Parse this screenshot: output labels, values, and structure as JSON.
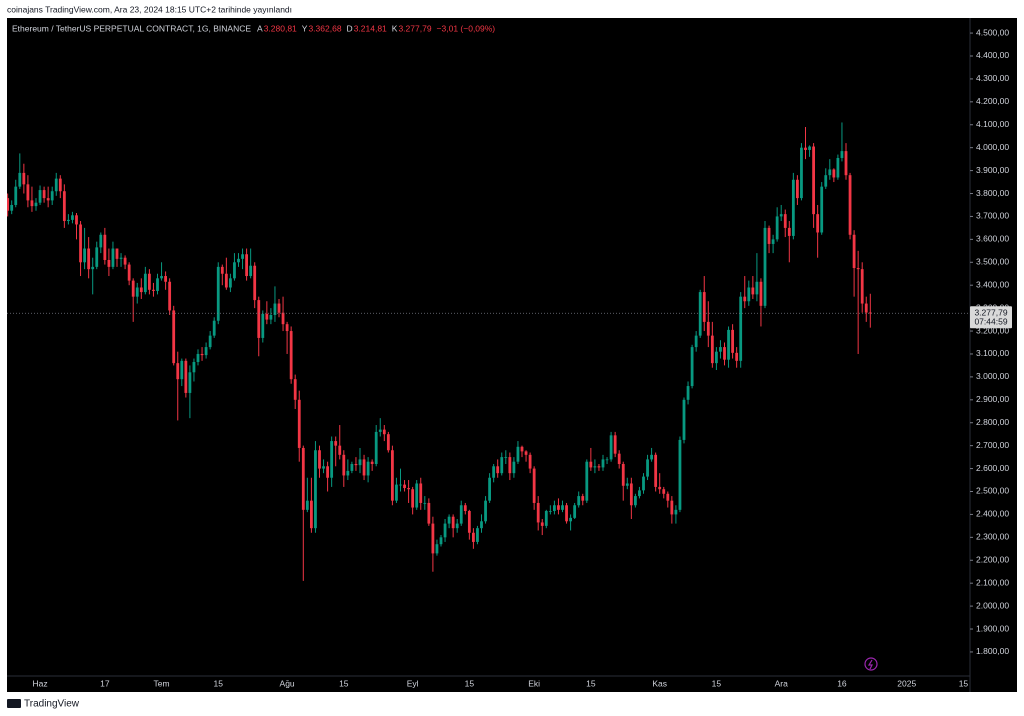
{
  "header": "coinajans TradingView.com, Ara 23, 2024 18:15 UTC+2 tarihinde yayınlandı",
  "footer": {
    "brand": "TradingView"
  },
  "chart_data": {
    "type": "candlestick",
    "title": "Ethereum / TetherUS PERPETUAL CONTRACT, 1G, BINANCE",
    "ohlc_legend": [
      {
        "key": "A",
        "text": "3.280,81"
      },
      {
        "key": "Y",
        "text": "3.362,68"
      },
      {
        "key": "D",
        "text": "3.214,81"
      },
      {
        "key": "K",
        "text": "3.277,79"
      }
    ],
    "change": "−3,01 (−0,09%)",
    "last_price_label": "3.277,79",
    "countdown": "07:44:59",
    "up_color": "#089981",
    "down_color": "#f23645",
    "categories": [
      null,
      null,
      null,
      null,
      null,
      null,
      null,
      null,
      null,
      "Haz",
      null,
      null,
      null,
      null,
      null,
      null,
      null,
      null,
      null,
      null,
      null,
      null,
      null,
      null,
      null,
      "17",
      null,
      null,
      null,
      null,
      null,
      null,
      null,
      null,
      null,
      null,
      null,
      null,
      null,
      "Tem",
      null,
      null,
      null,
      null,
      null,
      null,
      null,
      null,
      null,
      null,
      null,
      null,
      null,
      "15",
      null,
      null,
      null,
      null,
      null,
      null,
      null,
      null,
      null,
      null,
      null,
      null,
      null,
      null,
      null,
      null,
      "Ağu",
      null,
      null,
      null,
      null,
      null,
      null,
      null,
      null,
      null,
      null,
      null,
      null,
      null,
      "15",
      null,
      null,
      null,
      null,
      null,
      null,
      null,
      null,
      null,
      null,
      null,
      null,
      null,
      null,
      null,
      null,
      "Eyl",
      null,
      null,
      null,
      null,
      null,
      null,
      null,
      null,
      null,
      null,
      null,
      null,
      null,
      "15",
      null,
      null,
      null,
      null,
      null,
      null,
      null,
      null,
      null,
      null,
      null,
      null,
      null,
      null,
      null,
      "Eki",
      null,
      null,
      null,
      null,
      null,
      null,
      null,
      null,
      null,
      null,
      null,
      null,
      null,
      "15",
      null,
      null,
      null,
      null,
      null,
      null,
      null,
      null,
      null,
      null,
      null,
      null,
      null,
      null,
      null,
      null,
      "Kas",
      null,
      null,
      null,
      null,
      null,
      null,
      null,
      null,
      null,
      null,
      null,
      null,
      null,
      "15",
      null,
      null,
      null,
      null,
      null,
      null,
      null,
      null,
      null,
      null,
      null,
      null,
      null,
      null,
      null,
      "Ara",
      null,
      null,
      null,
      null,
      null,
      null,
      null,
      null,
      null,
      null,
      null,
      null,
      null,
      null,
      "16",
      null,
      null,
      null,
      null,
      null,
      null,
      null,
      null,
      null,
      null,
      null,
      null,
      null,
      null,
      null,
      "2025",
      null,
      null,
      null,
      null,
      null,
      null,
      null,
      null,
      null,
      null,
      null,
      null,
      null,
      "15"
    ],
    "open": [
      3760,
      3780,
      3725,
      3750,
      3830,
      3890,
      3840,
      3770,
      3745,
      3760,
      3815,
      3780,
      3770,
      3810,
      3865,
      3810,
      3680,
      3685,
      3705,
      3665,
      3500,
      3560,
      3470,
      3480,
      3565,
      3620,
      3510,
      3480,
      3560,
      3515,
      3520,
      3490,
      3420,
      3350,
      3390,
      3370,
      3450,
      3380,
      3375,
      3430,
      3440,
      3415,
      3290,
      3060,
      2990,
      3070,
      2930,
      3020,
      3065,
      3100,
      3095,
      3130,
      3180,
      3245,
      3480,
      3450,
      3390,
      3430,
      3500,
      3515,
      3535,
      3440,
      3485,
      3335,
      3170,
      3275,
      3250,
      3270,
      3320,
      3280,
      3230,
      3200,
      2990,
      2900,
      2690,
      2420,
      2460,
      2340,
      2680,
      2600,
      2610,
      2560,
      2720,
      2700,
      2660,
      2570,
      2590,
      2620,
      2615,
      2640,
      2570,
      2630,
      2620,
      2760,
      2770,
      2750,
      2680,
      2460,
      2530,
      2530,
      2515,
      2510,
      2430,
      2535,
      2450,
      2450,
      2360,
      2230,
      2270,
      2300,
      2360,
      2390,
      2340,
      2360,
      2440,
      2415,
      2320,
      2280,
      2340,
      2370,
      2460,
      2560,
      2610,
      2580,
      2650,
      2650,
      2580,
      2630,
      2695,
      2675,
      2660,
      2600,
      2450,
      2365,
      2350,
      2415,
      2415,
      2440,
      2420,
      2440,
      2370,
      2385,
      2440,
      2480,
      2460,
      2630,
      2605,
      2610,
      2605,
      2640,
      2640,
      2745,
      2665,
      2620,
      2525,
      2535,
      2440,
      2480,
      2505,
      2565,
      2640,
      2660,
      2520,
      2510,
      2490,
      2460,
      2400,
      2420,
      2725,
      2900,
      2960,
      3130,
      3180,
      3370,
      3240,
      3180,
      3060,
      3110,
      3130,
      3075,
      3205,
      3105,
      3070,
      3350,
      3330,
      3390,
      3360,
      3415,
      3310,
      3650,
      3580,
      3600,
      3700,
      3710,
      3650,
      3615,
      3860,
      3780,
      4000,
      3990,
      4005,
      3710,
      3630,
      3830,
      3880,
      3905,
      3870,
      3955,
      3985,
      3880,
      3620,
      3475,
      3470,
      3320,
      3280.81,
      null,
      null,
      null,
      null,
      null,
      null,
      null,
      null,
      null,
      null,
      null,
      null,
      null,
      null,
      null,
      null,
      null,
      null,
      null,
      null,
      null,
      null,
      null
    ],
    "high": [
      3830,
      3800,
      3770,
      3860,
      3975,
      3930,
      3880,
      3830,
      3780,
      3835,
      3830,
      3830,
      3830,
      3890,
      3880,
      3840,
      3710,
      3720,
      3715,
      3680,
      3650,
      3610,
      3520,
      3590,
      3630,
      3650,
      3560,
      3590,
      3560,
      3540,
      3530,
      3500,
      3430,
      3410,
      3430,
      3480,
      3470,
      3410,
      3450,
      3500,
      3460,
      3430,
      3310,
      3110,
      3080,
      3080,
      3050,
      3080,
      3120,
      3130,
      3150,
      3200,
      3260,
      3500,
      3490,
      3520,
      3450,
      3540,
      3540,
      3560,
      3560,
      3560,
      3500,
      3350,
      3290,
      3330,
      3300,
      3395,
      3340,
      3350,
      3240,
      3220,
      3010,
      2940,
      2700,
      2560,
      2560,
      2720,
      2700,
      2640,
      2630,
      2740,
      2740,
      2790,
      2680,
      2640,
      2630,
      2650,
      2690,
      2660,
      2650,
      2640,
      2790,
      2820,
      2790,
      2760,
      2700,
      2560,
      2600,
      2550,
      2550,
      2520,
      2550,
      2560,
      2480,
      2470,
      2390,
      2290,
      2310,
      2380,
      2400,
      2400,
      2380,
      2460,
      2450,
      2420,
      2340,
      2350,
      2400,
      2480,
      2580,
      2620,
      2640,
      2670,
      2680,
      2670,
      2650,
      2720,
      2700,
      2680,
      2670,
      2610,
      2480,
      2380,
      2420,
      2440,
      2460,
      2470,
      2460,
      2450,
      2400,
      2450,
      2500,
      2490,
      2640,
      2690,
      2640,
      2620,
      2660,
      2650,
      2760,
      2760,
      2680,
      2630,
      2560,
      2560,
      2490,
      2520,
      2580,
      2660,
      2690,
      2670,
      2580,
      2520,
      2500,
      2480,
      2440,
      2740,
      2910,
      2980,
      3140,
      3200,
      3380,
      3440,
      3330,
      3240,
      3130,
      3160,
      3150,
      3220,
      3230,
      3130,
      3370,
      3440,
      3420,
      3440,
      3540,
      3430,
      3680,
      3660,
      3620,
      3740,
      3750,
      3730,
      3680,
      3890,
      3880,
      4020,
      4090,
      4010,
      4020,
      3750,
      3850,
      3910,
      3950,
      3910,
      3970,
      4110,
      4020,
      3890,
      3640,
      3550,
      3500,
      3350,
      3362.68,
      null,
      null,
      null,
      null,
      null,
      null,
      null,
      null,
      null,
      null,
      null,
      null,
      null,
      null,
      null,
      null,
      null,
      null,
      null,
      null,
      null,
      null,
      null
    ],
    "low": [
      3660,
      3700,
      3710,
      3740,
      3820,
      3800,
      3740,
      3720,
      3725,
      3750,
      3760,
      3740,
      3750,
      3790,
      3780,
      3650,
      3665,
      3670,
      3600,
      3440,
      3470,
      3430,
      3360,
      3470,
      3540,
      3490,
      3440,
      3470,
      3480,
      3480,
      3470,
      3400,
      3240,
      3320,
      3340,
      3360,
      3360,
      3350,
      3360,
      3420,
      3380,
      3270,
      3050,
      2810,
      2960,
      2910,
      2820,
      2980,
      3050,
      3070,
      3080,
      3120,
      3170,
      3230,
      3400,
      3380,
      3370,
      3420,
      3480,
      3470,
      3420,
      3430,
      3300,
      3090,
      3150,
      3230,
      3230,
      3240,
      3260,
      3200,
      3100,
      2970,
      2860,
      2630,
      2110,
      2410,
      2320,
      2320,
      2560,
      2580,
      2500,
      2520,
      2610,
      2640,
      2520,
      2550,
      2580,
      2590,
      2580,
      2550,
      2540,
      2590,
      2610,
      2740,
      2720,
      2670,
      2440,
      2450,
      2500,
      2500,
      2450,
      2400,
      2420,
      2420,
      2420,
      2350,
      2150,
      2220,
      2260,
      2280,
      2340,
      2300,
      2320,
      2350,
      2400,
      2290,
      2250,
      2270,
      2320,
      2360,
      2450,
      2540,
      2560,
      2570,
      2620,
      2550,
      2560,
      2620,
      2650,
      2630,
      2580,
      2420,
      2330,
      2310,
      2340,
      2400,
      2400,
      2400,
      2410,
      2360,
      2330,
      2380,
      2430,
      2440,
      2450,
      2590,
      2580,
      2590,
      2590,
      2620,
      2630,
      2650,
      2600,
      2460,
      2510,
      2380,
      2430,
      2470,
      2490,
      2550,
      2630,
      2500,
      2490,
      2470,
      2430,
      2360,
      2360,
      2410,
      2710,
      2880,
      2950,
      3110,
      3170,
      3200,
      3130,
      3040,
      3030,
      3080,
      3050,
      3040,
      3080,
      3040,
      3040,
      3300,
      3310,
      3340,
      3330,
      3220,
      3300,
      3540,
      3540,
      3590,
      3680,
      3610,
      3500,
      3600,
      3750,
      3770,
      3950,
      3960,
      3650,
      3520,
      3620,
      3820,
      3860,
      3850,
      3860,
      3940,
      3860,
      3600,
      3350,
      3100,
      3280,
      3240,
      3214.81,
      null,
      null,
      null,
      null,
      null,
      null,
      null,
      null,
      null,
      null,
      null,
      null,
      null,
      null,
      null,
      null,
      null,
      null,
      null,
      null,
      null,
      null,
      null
    ],
    "close": [
      3780,
      3725,
      3750,
      3830,
      3890,
      3840,
      3770,
      3745,
      3760,
      3815,
      3780,
      3770,
      3810,
      3865,
      3810,
      3680,
      3685,
      3705,
      3665,
      3500,
      3560,
      3470,
      3480,
      3565,
      3620,
      3510,
      3480,
      3560,
      3515,
      3520,
      3490,
      3420,
      3350,
      3390,
      3370,
      3450,
      3380,
      3375,
      3430,
      3440,
      3415,
      3290,
      3060,
      2990,
      3070,
      2930,
      3020,
      3065,
      3100,
      3095,
      3130,
      3180,
      3245,
      3480,
      3450,
      3390,
      3430,
      3500,
      3515,
      3535,
      3440,
      3485,
      3335,
      3170,
      3275,
      3250,
      3270,
      3320,
      3280,
      3230,
      3200,
      2990,
      2900,
      2690,
      2420,
      2460,
      2340,
      2680,
      2600,
      2610,
      2560,
      2720,
      2700,
      2660,
      2570,
      2590,
      2620,
      2615,
      2640,
      2570,
      2630,
      2620,
      2760,
      2770,
      2750,
      2680,
      2460,
      2530,
      2530,
      2515,
      2510,
      2430,
      2535,
      2450,
      2450,
      2360,
      2230,
      2270,
      2300,
      2360,
      2390,
      2340,
      2360,
      2440,
      2415,
      2320,
      2280,
      2340,
      2370,
      2460,
      2560,
      2610,
      2580,
      2650,
      2650,
      2580,
      2630,
      2695,
      2675,
      2660,
      2600,
      2450,
      2365,
      2350,
      2415,
      2415,
      2440,
      2420,
      2440,
      2370,
      2385,
      2440,
      2480,
      2460,
      2630,
      2605,
      2610,
      2605,
      2640,
      2640,
      2745,
      2665,
      2620,
      2525,
      2535,
      2440,
      2480,
      2505,
      2565,
      2640,
      2660,
      2520,
      2510,
      2490,
      2460,
      2400,
      2420,
      2725,
      2900,
      2960,
      3130,
      3180,
      3370,
      3240,
      3180,
      3060,
      3110,
      3130,
      3075,
      3205,
      3105,
      3070,
      3350,
      3330,
      3390,
      3360,
      3415,
      3310,
      3650,
      3580,
      3600,
      3700,
      3710,
      3650,
      3615,
      3860,
      3780,
      4000,
      3990,
      4005,
      3710,
      3630,
      3830,
      3880,
      3905,
      3870,
      3955,
      3985,
      3880,
      3620,
      3475,
      3470,
      3320,
      3280.81,
      3277.79,
      null,
      null,
      null,
      null,
      null,
      null,
      null,
      null,
      null,
      null,
      null,
      null,
      null,
      null,
      null,
      null,
      null,
      null,
      null,
      null,
      null,
      null,
      null
    ],
    "ylim": [
      1634,
      4557
    ],
    "yticks": [
      {
        "value": 1800,
        "label": "1.800,00"
      },
      {
        "value": 1900,
        "label": "1.900,00"
      },
      {
        "value": 2000,
        "label": "2.000,00"
      },
      {
        "value": 2100,
        "label": "2.100,00"
      },
      {
        "value": 2200,
        "label": "2.200,00"
      },
      {
        "value": 2300,
        "label": "2.300,00"
      },
      {
        "value": 2400,
        "label": "2.400,00"
      },
      {
        "value": 2500,
        "label": "2.500,00"
      },
      {
        "value": 2600,
        "label": "2.600,00"
      },
      {
        "value": 2700,
        "label": "2.700,00"
      },
      {
        "value": 2800,
        "label": "2.800,00"
      },
      {
        "value": 2900,
        "label": "2.900,00"
      },
      {
        "value": 3000,
        "label": "3.000,00"
      },
      {
        "value": 3100,
        "label": "3.100,00"
      },
      {
        "value": 3200,
        "label": "3.200,00"
      },
      {
        "value": 3300,
        "label": "3.300,00"
      },
      {
        "value": 3400,
        "label": "3.400,00"
      },
      {
        "value": 3500,
        "label": "3.500,00"
      },
      {
        "value": 3600,
        "label": "3.600,00"
      },
      {
        "value": 3700,
        "label": "3.700,00"
      },
      {
        "value": 3800,
        "label": "3.800,00"
      },
      {
        "value": 3900,
        "label": "3.900,00"
      },
      {
        "value": 4000,
        "label": "4.000,00"
      },
      {
        "value": 4100,
        "label": "4.100,00"
      },
      {
        "value": 4200,
        "label": "4.200,00"
      },
      {
        "value": 4300,
        "label": "4.300,00"
      },
      {
        "value": 4400,
        "label": "4.400,00"
      },
      {
        "value": 4500,
        "label": "4.500,00"
      }
    ],
    "grid": false
  }
}
